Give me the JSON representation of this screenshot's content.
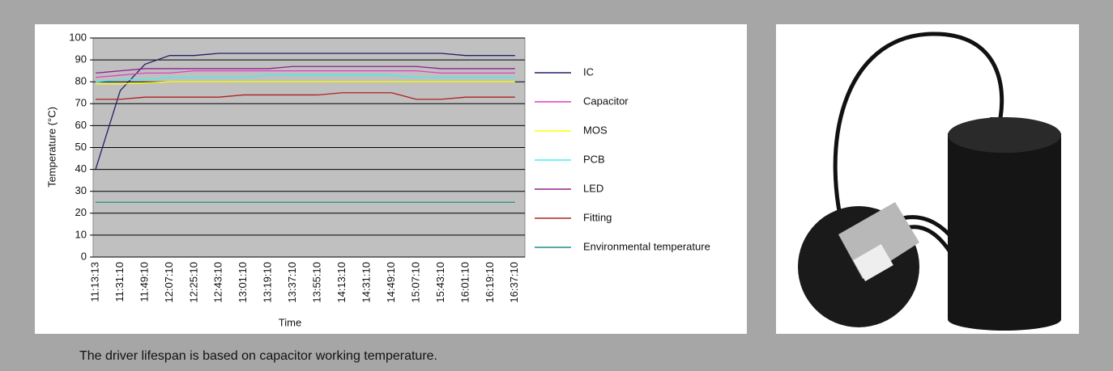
{
  "chart_data": {
    "type": "line",
    "x_label": "Time",
    "y_label": "Temperature (°C)",
    "categories": [
      "11:13:13",
      "11:31:10",
      "11:49:10",
      "12:07:10",
      "12:25:10",
      "12:43:10",
      "13:01:10",
      "13:19:10",
      "13:37:10",
      "13:55:10",
      "14:13:10",
      "14:31:10",
      "14:49:10",
      "15:07:10",
      "15:43:10",
      "16:01:10",
      "16:19:10",
      "16:37:10"
    ],
    "series": [
      {
        "name": "IC",
        "color": "#20206a",
        "values": [
          40,
          76,
          88,
          92,
          92,
          93,
          93,
          93,
          93,
          93,
          93,
          93,
          93,
          93,
          93,
          92,
          92,
          92
        ]
      },
      {
        "name": "Capacitor",
        "color": "#e040c0",
        "values": [
          82,
          83,
          84,
          84,
          85,
          85,
          85,
          85,
          85,
          85,
          85,
          85,
          85,
          85,
          84,
          84,
          84,
          84
        ]
      },
      {
        "name": "MOS",
        "color": "#ffff00",
        "values": [
          79,
          79,
          79.5,
          80,
          80,
          80,
          80,
          80,
          80,
          80,
          80,
          80,
          80,
          80,
          80,
          80,
          80,
          80
        ]
      },
      {
        "name": "PCB",
        "color": "#40f0f0",
        "values": [
          80,
          81,
          81,
          82,
          82,
          82,
          82,
          83,
          83,
          83,
          83,
          83,
          83,
          82,
          82,
          82,
          82,
          82
        ]
      },
      {
        "name": "LED",
        "color": "#902090",
        "values": [
          84,
          85,
          86,
          86,
          86,
          86,
          86,
          86,
          87,
          87,
          87,
          87,
          87,
          87,
          86,
          86,
          86,
          86
        ]
      },
      {
        "name": "Fitting",
        "color": "#b02020",
        "values": [
          72,
          72,
          73,
          73,
          73,
          73,
          74,
          74,
          74,
          74,
          75,
          75,
          75,
          72,
          72,
          73,
          73,
          73
        ]
      },
      {
        "name": "Environmental temperature",
        "color": "#209080",
        "values": [
          25,
          25,
          25,
          25,
          25,
          25,
          25,
          25,
          25,
          25,
          25,
          25,
          25,
          25,
          25,
          25,
          25,
          25
        ]
      }
    ],
    "ylim": [
      0,
      100
    ],
    "yticks": [
      0,
      10,
      20,
      30,
      40,
      50,
      60,
      70,
      80,
      90,
      100
    ],
    "grid": true,
    "legend": "right"
  },
  "caption": "The driver lifespan is based on capacitor working temperature."
}
